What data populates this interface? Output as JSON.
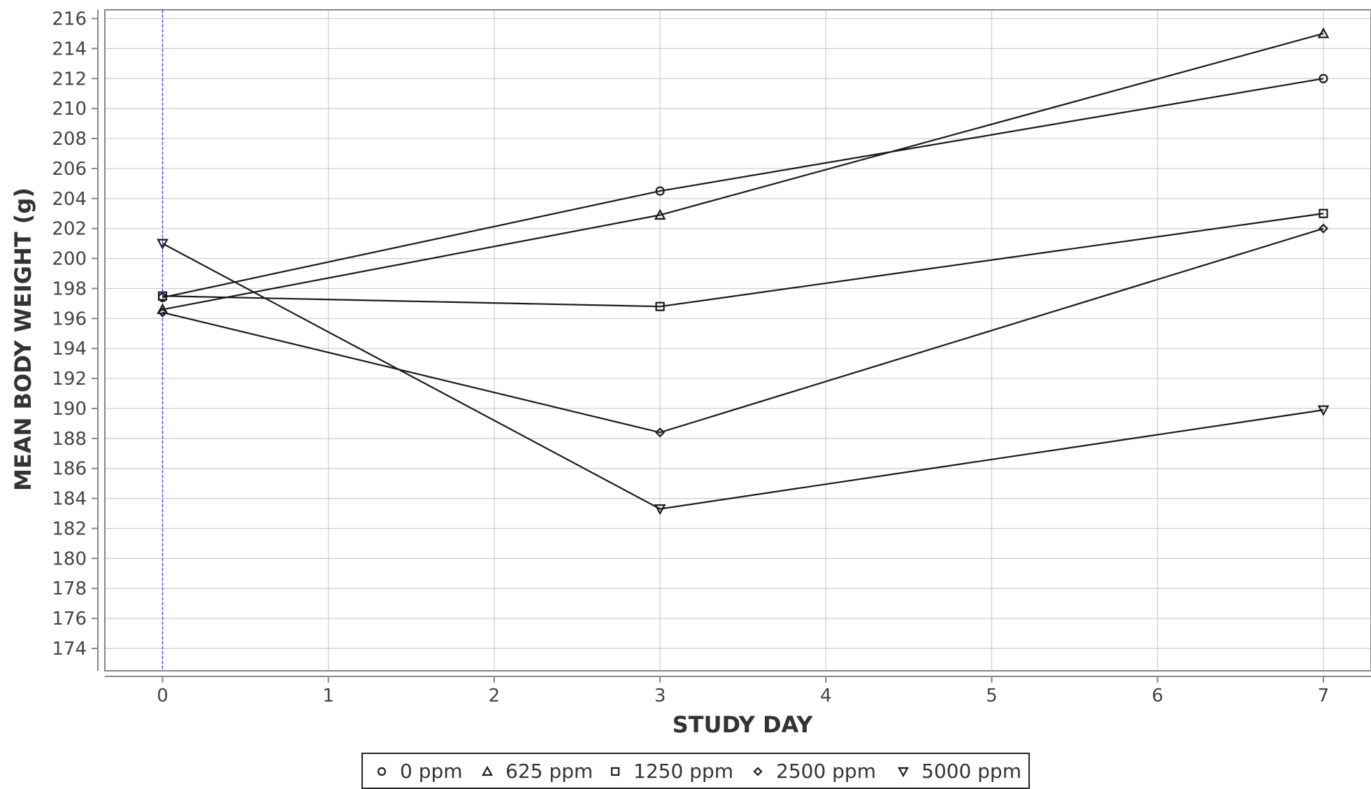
{
  "chart_data": {
    "type": "line",
    "title": "",
    "xlabel": "STUDY DAY",
    "ylabel": "MEAN BODY WEIGHT (g)",
    "xlim": [
      -0.35,
      7.3
    ],
    "ylim": [
      173,
      216.5
    ],
    "xticks": [
      0,
      1,
      2,
      3,
      4,
      5,
      6,
      7
    ],
    "yticks": [
      174,
      176,
      178,
      180,
      182,
      184,
      186,
      188,
      190,
      192,
      194,
      196,
      198,
      200,
      202,
      204,
      206,
      208,
      210,
      212,
      214,
      216
    ],
    "grid": true,
    "reference_line_x": 0,
    "legend_position": "bottom",
    "series": [
      {
        "name": "0 ppm",
        "marker": "circle",
        "x": [
          0,
          3,
          7
        ],
        "y": [
          197.4,
          204.5,
          212.0
        ]
      },
      {
        "name": "625 ppm",
        "marker": "triangle-up",
        "x": [
          0,
          3,
          7
        ],
        "y": [
          196.6,
          202.9,
          215.0
        ]
      },
      {
        "name": "1250 ppm",
        "marker": "square",
        "x": [
          0,
          3,
          7
        ],
        "y": [
          197.5,
          196.8,
          203.0
        ]
      },
      {
        "name": "2500 ppm",
        "marker": "diamond",
        "x": [
          0,
          3,
          7
        ],
        "y": [
          196.4,
          188.4,
          202.0
        ]
      },
      {
        "name": "5000 ppm",
        "marker": "triangle-down",
        "x": [
          0,
          3,
          7
        ],
        "y": [
          201.0,
          183.3,
          189.9
        ]
      }
    ],
    "colors": {
      "line": "#1a1a1a",
      "grid": "#cccccc",
      "reference": "#4a4aff",
      "axis": "#888888"
    }
  }
}
